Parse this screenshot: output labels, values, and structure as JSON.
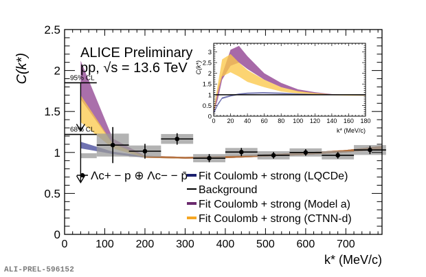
{
  "footer_id": "ALI-PREL-596152",
  "colors": {
    "lqcde": "#4b4f9e",
    "lqcde_legend": "#1a1f6e",
    "model_a": "#8e3f8f",
    "ctnn_d": "#f5a623",
    "ctnn_band": "#fbc84a",
    "background_line": "#000000",
    "syst_box": "#9a9a9a",
    "overlap": "#b06a3a"
  },
  "chart_data": [
    {
      "id": "main",
      "type": "line",
      "title": "ALICE Preliminary",
      "subtitle": "pp, √s = 13.6 TeV",
      "xlabel": "k* (MeV/c)",
      "ylabel": "C(k*)",
      "xlim": [
        0,
        790
      ],
      "ylim": [
        0,
        2.5
      ],
      "xticks": [
        0,
        100,
        200,
        300,
        400,
        500,
        600,
        700
      ],
      "yticks": [
        0,
        0.5,
        1,
        1.5,
        2,
        2.5
      ],
      "ytick_labels": [
        "0",
        "0.5",
        "1",
        "1.5",
        "2",
        "2.5"
      ],
      "grid": false,
      "legend_position": "bottom-center",
      "data_series": {
        "name": "Λc+ − p ⊕ Λc− − p̄",
        "x": [
          120,
          200,
          280,
          360,
          440,
          520,
          600,
          680,
          760
        ],
        "y": [
          1.09,
          1.015,
          1.165,
          0.93,
          1.005,
          0.965,
          1.0,
          0.965,
          1.03
        ],
        "x_err": [
          40,
          40,
          40,
          40,
          40,
          40,
          40,
          40,
          40
        ],
        "y_err_stat": [
          0.22,
          0.09,
          0.07,
          0.05,
          0.05,
          0.04,
          0.04,
          0.04,
          0.05
        ],
        "y_syst": [
          0.14,
          0.07,
          0.06,
          0.05,
          0.05,
          0.05,
          0.05,
          0.05,
          0.06
        ]
      },
      "first_bin_syst": {
        "x_range": [
          40,
          80
        ],
        "y": 0.96,
        "y_syst": 0.03
      },
      "limits": [
        {
          "label": "95% CL",
          "value": 1.85,
          "x_range": [
            0,
            80
          ],
          "arrow_x": 40
        },
        {
          "label": "68% CL",
          "value": 1.22,
          "x_range": [
            0,
            80
          ],
          "arrow_x": 40
        }
      ],
      "bands": [
        {
          "name": "Fit Coulomb + strong (LQCDe)",
          "color_key": "lqcde",
          "x": [
            40,
            120,
            200,
            300,
            400,
            500,
            600,
            700,
            790
          ],
          "lo": [
            1.05,
            0.98,
            0.935,
            0.925,
            0.93,
            0.95,
            0.97,
            1.0,
            1.04
          ],
          "hi": [
            1.13,
            1.01,
            0.955,
            0.945,
            0.955,
            0.975,
            1.0,
            1.03,
            1.08
          ]
        },
        {
          "name": "Fit Coulomb + strong (Model a)",
          "color_key": "model_a",
          "x": [
            40,
            120,
            200,
            300,
            400,
            500,
            600,
            700,
            790
          ],
          "lo": [
            1.65,
            1.1,
            0.94,
            0.925,
            0.93,
            0.95,
            0.97,
            1.0,
            1.04
          ],
          "hi": [
            2.12,
            1.17,
            0.96,
            0.945,
            0.955,
            0.975,
            1.0,
            1.03,
            1.08
          ]
        },
        {
          "name": "Fit Coulomb + strong (CTNN-d)",
          "color_key": "ctnn_band",
          "x": [
            40,
            120,
            200,
            300,
            400,
            500,
            600,
            700,
            790
          ],
          "lo": [
            1.37,
            1.05,
            0.935,
            0.925,
            0.93,
            0.95,
            0.97,
            1.0,
            1.04
          ],
          "hi": [
            1.7,
            1.11,
            0.955,
            0.945,
            0.955,
            0.975,
            1.0,
            1.03,
            1.08
          ]
        }
      ],
      "legend": [
        {
          "label": "Λc+ − p ⊕ Λc− − p̄",
          "marker": "point"
        },
        {
          "label": "Fit Coulomb + strong (LQCDe)",
          "color_key": "lqcde_legend"
        },
        {
          "label": "Background",
          "color_key": "background_line"
        },
        {
          "label": "Fit Coulomb + strong (Model a)",
          "color_key": "model_a"
        },
        {
          "label": "Fit Coulomb + strong (CTNN-d)",
          "color_key": "ctnn_d"
        }
      ]
    },
    {
      "id": "inset",
      "type": "line",
      "xlabel": "k* (MeV/c)",
      "ylabel": "C(k*)",
      "xlim": [
        0,
        180
      ],
      "ylim": [
        0,
        3.4
      ],
      "xticks": [
        0,
        20,
        40,
        60,
        80,
        100,
        120,
        140,
        160,
        180
      ],
      "yticks": [
        0,
        0.5,
        1,
        1.5,
        2,
        2.5,
        3
      ],
      "ytick_labels": [
        "0",
        "0.5",
        "1",
        "1.5",
        "2",
        "2.5",
        "3"
      ],
      "background_level": 1.0,
      "bands": [
        {
          "name": "Model a",
          "color_key": "model_a",
          "x": [
            0,
            5,
            10,
            20,
            30,
            40,
            60,
            80,
            100,
            120,
            140,
            160,
            180
          ],
          "lo": [
            0.15,
            0.8,
            1.7,
            2.35,
            2.5,
            2.2,
            1.7,
            1.35,
            1.15,
            1.05,
            1.0,
            0.98,
            0.97
          ],
          "hi": [
            0.3,
            1.3,
            1.95,
            3.1,
            3.28,
            2.8,
            2.0,
            1.55,
            1.25,
            1.12,
            1.03,
            1.0,
            0.99
          ]
        },
        {
          "name": "CTNN-d",
          "color_key": "ctnn_band",
          "x": [
            0,
            5,
            10,
            20,
            30,
            40,
            60,
            80,
            100,
            120,
            140,
            160,
            180
          ],
          "lo": [
            0.15,
            1.1,
            1.85,
            2.05,
            1.85,
            1.6,
            1.35,
            1.15,
            1.06,
            1.02,
            0.98,
            0.96,
            0.95
          ],
          "hi": [
            0.3,
            1.5,
            2.65,
            2.9,
            2.5,
            2.15,
            1.7,
            1.35,
            1.17,
            1.08,
            1.02,
            0.99,
            0.97
          ]
        },
        {
          "name": "LQCDe",
          "color_key": "lqcde",
          "x": [
            0,
            5,
            10,
            20,
            30,
            40,
            60,
            80,
            100,
            120,
            140,
            160,
            180
          ],
          "lo": [
            0.1,
            0.5,
            0.8,
            0.92,
            1.0,
            1.04,
            1.06,
            1.04,
            1.02,
            1.0,
            0.99,
            0.98,
            0.97
          ],
          "hi": [
            0.2,
            0.6,
            0.88,
            0.98,
            1.06,
            1.1,
            1.12,
            1.1,
            1.06,
            1.03,
            1.01,
            1.0,
            0.99
          ]
        }
      ]
    }
  ]
}
